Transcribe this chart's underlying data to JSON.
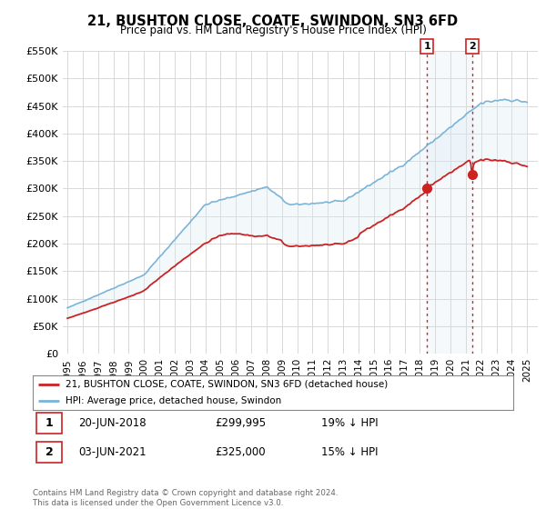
{
  "title": "21, BUSHTON CLOSE, COATE, SWINDON, SN3 6FD",
  "subtitle": "Price paid vs. HM Land Registry's House Price Index (HPI)",
  "ylim": [
    0,
    550000
  ],
  "yticks": [
    0,
    50000,
    100000,
    150000,
    200000,
    250000,
    300000,
    350000,
    400000,
    450000,
    500000,
    550000
  ],
  "ytick_labels": [
    "£0",
    "£50K",
    "£100K",
    "£150K",
    "£200K",
    "£250K",
    "£300K",
    "£350K",
    "£400K",
    "£450K",
    "£500K",
    "£550K"
  ],
  "hpi_color": "#7ab4d8",
  "property_color": "#cc2222",
  "vline_color": "#cc2222",
  "shade_color": "#daeaf5",
  "background_color": "#ffffff",
  "grid_color": "#d8d8d8",
  "legend_label_property": "21, BUSHTON CLOSE, COATE, SWINDON, SN3 6FD (detached house)",
  "legend_label_hpi": "HPI: Average price, detached house, Swindon",
  "transaction1_label": "1",
  "transaction1_date": "20-JUN-2018",
  "transaction1_price": "£299,995",
  "transaction1_hpi": "19% ↓ HPI",
  "transaction2_label": "2",
  "transaction2_date": "03-JUN-2021",
  "transaction2_price": "£325,000",
  "transaction2_hpi": "15% ↓ HPI",
  "copyright": "Contains HM Land Registry data © Crown copyright and database right 2024.\nThis data is licensed under the Open Government Licence v3.0.",
  "sale1_year": 2018.46,
  "sale1_price": 299995,
  "sale2_year": 2021.42,
  "sale2_price": 325000,
  "xtick_years": [
    1995,
    1996,
    1997,
    1998,
    1999,
    2000,
    2001,
    2002,
    2003,
    2004,
    2005,
    2006,
    2007,
    2008,
    2009,
    2010,
    2011,
    2012,
    2013,
    2014,
    2015,
    2016,
    2017,
    2018,
    2019,
    2020,
    2021,
    2022,
    2023,
    2024,
    2025
  ]
}
